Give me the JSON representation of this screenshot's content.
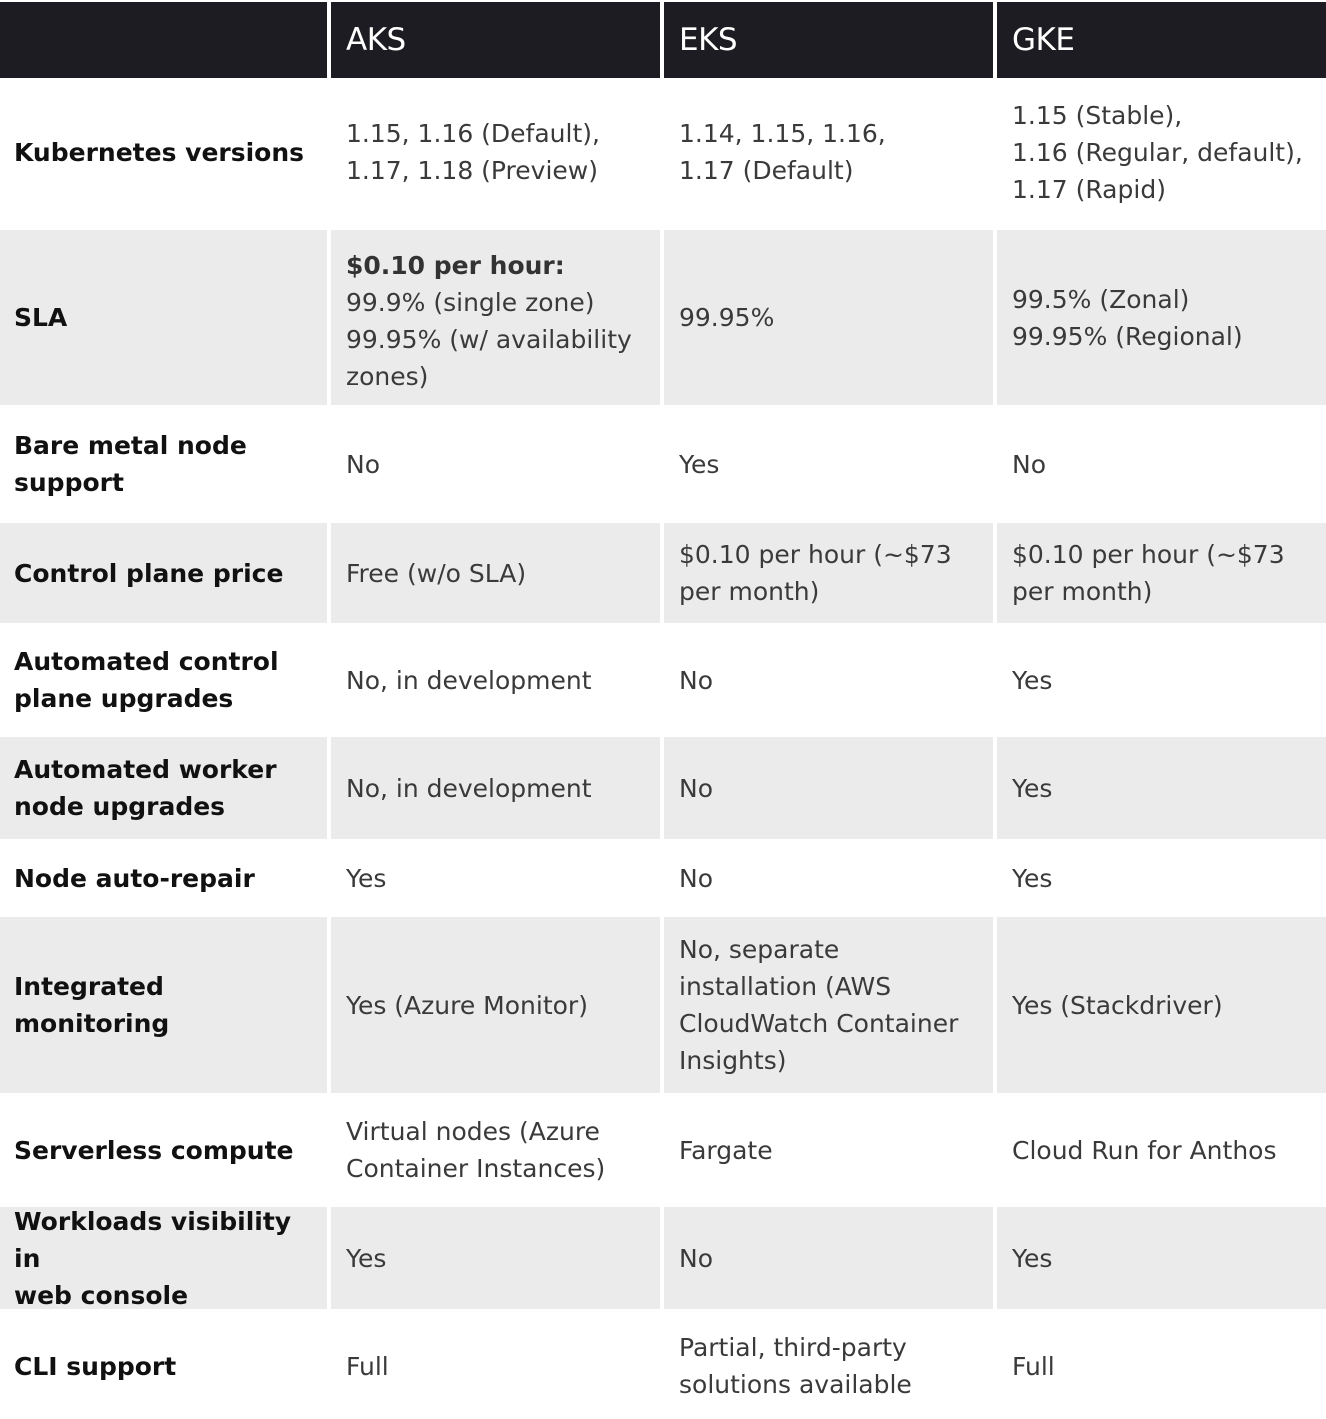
{
  "header": {
    "corner": "",
    "aks": "AKS",
    "eks": "EKS",
    "gke": "GKE"
  },
  "rows": [
    {
      "label": "Kubernetes versions",
      "aks": "1.15, 1.16 (Default),\n1.17, 1.18 (Preview)",
      "eks": "1.14, 1.15, 1.16,\n1.17 (Default)",
      "gke": "1.15 (Stable),\n1.16 (Regular, default),\n1.17 (Rapid)"
    },
    {
      "label": "SLA",
      "aks_bold": "$0.10 per hour:",
      "aks": "99.9% (single zone)\n99.95% (w/ availability\nzones)",
      "eks": "99.95%",
      "gke": "99.5% (Zonal)\n99.95% (Regional)"
    },
    {
      "label": "Bare metal node\nsupport",
      "aks": "No",
      "eks": "Yes",
      "gke": "No"
    },
    {
      "label": "Control plane price",
      "aks": "Free (w/o SLA)",
      "eks": "$0.10 per hour (~$73\nper month)",
      "gke": "$0.10 per hour (~$73\nper month)"
    },
    {
      "label": "Automated control\nplane upgrades",
      "aks": "No, in development",
      "eks": "No",
      "gke": "Yes"
    },
    {
      "label": "Automated worker\nnode upgrades",
      "aks": "No, in development",
      "eks": "No",
      "gke": "Yes"
    },
    {
      "label": "Node auto-repair",
      "aks": "Yes",
      "eks": "No",
      "gke": "Yes"
    },
    {
      "label": "Integrated monitoring",
      "aks": "Yes (Azure Monitor)",
      "eks": "No, separate\ninstallation (AWS\nCloudWatch Container\nInsights)",
      "gke": "Yes (Stackdriver)"
    },
    {
      "label": "Serverless compute",
      "aks": "Virtual nodes (Azure\nContainer Instances)",
      "eks": "Fargate",
      "gke": "Cloud Run for Anthos"
    },
    {
      "label": "Workloads visibility in\nweb console",
      "aks": "Yes",
      "eks": "No",
      "gke": "Yes"
    },
    {
      "label": "CLI support",
      "aks": "Full",
      "eks": "Partial, third-party\nsolutions available",
      "gke": "Full"
    }
  ]
}
